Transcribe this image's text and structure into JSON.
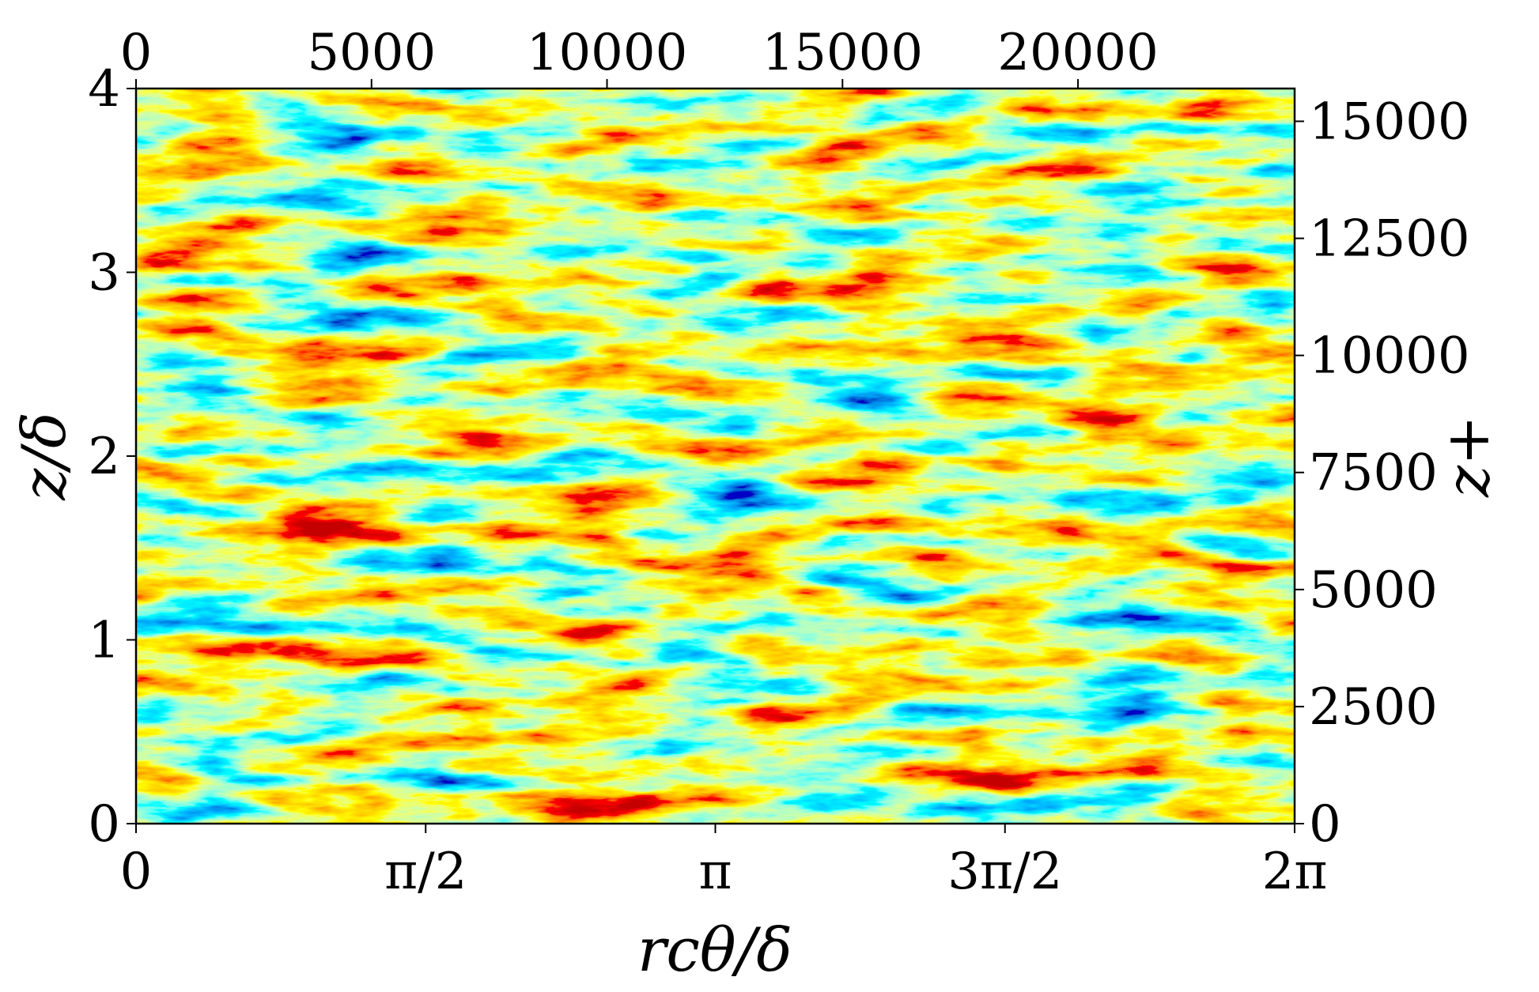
{
  "chart_data": {
    "type": "heatmap",
    "title": "",
    "colormap": "jet",
    "grid": false,
    "legend": "none",
    "x_axis": {
      "label": "rcθ/δ",
      "range": [
        0,
        6.283185307
      ],
      "ticks": [
        {
          "value": 0,
          "label": "0"
        },
        {
          "value": 1.570796327,
          "label": "π/2"
        },
        {
          "value": 3.141592654,
          "label": "π"
        },
        {
          "value": 4.71238898,
          "label": "3π/2"
        },
        {
          "value": 6.283185307,
          "label": "2π"
        }
      ]
    },
    "x_top_axis": {
      "label": "",
      "range": [
        0,
        24600
      ],
      "ticks": [
        {
          "value": 0,
          "label": "0"
        },
        {
          "value": 5000,
          "label": "5000"
        },
        {
          "value": 10000,
          "label": "10000"
        },
        {
          "value": 15000,
          "label": "15000"
        },
        {
          "value": 20000,
          "label": "20000"
        }
      ]
    },
    "y_axis": {
      "label": "z/δ",
      "range": [
        0,
        4
      ],
      "ticks": [
        {
          "value": 0,
          "label": "0"
        },
        {
          "value": 1,
          "label": "1"
        },
        {
          "value": 2,
          "label": "2"
        },
        {
          "value": 3,
          "label": "3"
        },
        {
          "value": 4,
          "label": "4"
        }
      ]
    },
    "y_right_axis": {
      "label": "z+",
      "range": [
        0,
        15700
      ],
      "ticks": [
        {
          "value": 0,
          "label": "0"
        },
        {
          "value": 2500,
          "label": "2500"
        },
        {
          "value": 5000,
          "label": "5000"
        },
        {
          "value": 7500,
          "label": "7500"
        },
        {
          "value": 10000,
          "label": "10000"
        },
        {
          "value": 12500,
          "label": "12500"
        },
        {
          "value": 15000,
          "label": "15000"
        }
      ]
    }
  }
}
